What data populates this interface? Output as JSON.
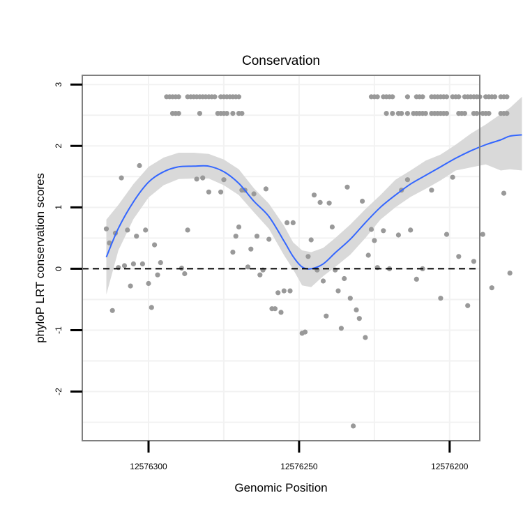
{
  "chart_data": {
    "type": "scatter",
    "title": "Conservation",
    "xlabel": "Genomic Position",
    "ylabel": "phyloP LRT conservation scores",
    "x_reversed": true,
    "xlim": [
      12576190,
      12576322
    ],
    "ylim": [
      -2.8,
      3.15
    ],
    "x_ticks": [
      {
        "value": 12576300,
        "label": "12576300"
      },
      {
        "value": 12576250,
        "label": "12576250"
      },
      {
        "value": 12576200,
        "label": "12576200"
      }
    ],
    "y_ticks": [
      {
        "value": 3,
        "label": "3"
      },
      {
        "value": 2,
        "label": "2"
      },
      {
        "value": 1,
        "label": "1"
      },
      {
        "value": 0,
        "label": "0"
      },
      {
        "value": -1,
        "label": "-1"
      },
      {
        "value": -2,
        "label": "-2"
      }
    ],
    "grid": true,
    "reference_line": {
      "y": 0,
      "style": "dashed",
      "color": "#000000"
    },
    "colors": {
      "points": "#999999",
      "smooth": "#3366FF",
      "ribbon": "#d9d9d9",
      "panel_border": "#7f7f7f",
      "grid": "#f2f2f2"
    },
    "series": [
      {
        "type": "scatter",
        "points": [
          [
            12576314,
            0.65
          ],
          [
            12576313,
            0.42
          ],
          [
            12576312,
            -0.68
          ],
          [
            12576311,
            0.58
          ],
          [
            12576310,
            0.02
          ],
          [
            12576309,
            1.48
          ],
          [
            12576308,
            0.05
          ],
          [
            12576307,
            0.63
          ],
          [
            12576306,
            -0.28
          ],
          [
            12576305,
            0.08
          ],
          [
            12576304,
            0.53
          ],
          [
            12576303,
            1.68
          ],
          [
            12576302,
            0.08
          ],
          [
            12576301,
            0.63
          ],
          [
            12576300,
            -0.24
          ],
          [
            12576299,
            -0.63
          ],
          [
            12576298,
            0.39
          ],
          [
            12576297,
            -0.1
          ],
          [
            12576296,
            0.1
          ],
          [
            12576289,
            0.01
          ],
          [
            12576288,
            -0.08
          ],
          [
            12576287,
            0.63
          ],
          [
            12576284,
            1.46
          ],
          [
            12576282,
            1.48
          ],
          [
            12576280,
            1.25
          ],
          [
            12576276,
            1.25
          ],
          [
            12576275,
            1.45
          ],
          [
            12576272,
            0.27
          ],
          [
            12576271,
            0.53
          ],
          [
            12576270,
            0.68
          ],
          [
            12576269,
            1.28
          ],
          [
            12576268,
            1.28
          ],
          [
            12576267,
            0.03
          ],
          [
            12576266,
            0.32
          ],
          [
            12576265,
            1.22
          ],
          [
            12576264,
            0.53
          ],
          [
            12576263,
            -0.1
          ],
          [
            12576262,
            -0.02
          ],
          [
            12576261,
            1.3
          ],
          [
            12576260,
            0.48
          ],
          [
            12576259,
            -0.65
          ],
          [
            12576258,
            -0.65
          ],
          [
            12576257,
            -0.39
          ],
          [
            12576256,
            -0.71
          ],
          [
            12576255,
            -0.36
          ],
          [
            12576254,
            0.75
          ],
          [
            12576253,
            -0.36
          ],
          [
            12576252,
            0.75
          ],
          [
            12576249,
            -1.05
          ],
          [
            12576248,
            -1.03
          ],
          [
            12576247,
            0.2
          ],
          [
            12576246,
            0.47
          ],
          [
            12576245,
            1.2
          ],
          [
            12576244,
            -0.02
          ],
          [
            12576243,
            1.08
          ],
          [
            12576242,
            -0.2
          ],
          [
            12576241,
            -0.77
          ],
          [
            12576240,
            1.07
          ],
          [
            12576239,
            0.68
          ],
          [
            12576238,
            -0.02
          ],
          [
            12576237,
            -0.36
          ],
          [
            12576236,
            -0.97
          ],
          [
            12576235,
            -0.16
          ],
          [
            12576234,
            1.33
          ],
          [
            12576233,
            -0.48
          ],
          [
            12576232,
            -2.56
          ],
          [
            12576231,
            -0.67
          ],
          [
            12576230,
            -0.81
          ],
          [
            12576229,
            1.1
          ],
          [
            12576228,
            -1.12
          ],
          [
            12576227,
            0.22
          ],
          [
            12576226,
            0.64
          ],
          [
            12576225,
            0.46
          ],
          [
            12576224,
            0.02
          ],
          [
            12576222,
            0.62
          ],
          [
            12576220,
            0.0
          ],
          [
            12576217,
            0.55
          ],
          [
            12576216,
            1.28
          ],
          [
            12576214,
            1.45
          ],
          [
            12576213,
            0.63
          ],
          [
            12576211,
            -0.17
          ],
          [
            12576209,
            0.0
          ],
          [
            12576206,
            1.28
          ],
          [
            12576203,
            -0.48
          ],
          [
            12576201,
            0.56
          ],
          [
            12576199,
            1.49
          ],
          [
            12576197,
            0.2
          ],
          [
            12576194,
            -0.6
          ],
          [
            12576192,
            0.12
          ],
          [
            12576189,
            0.56
          ],
          [
            12576186,
            -0.31
          ],
          [
            12576182,
            1.23
          ],
          [
            12576180,
            -0.07
          ],
          [
            12576294,
            2.8
          ],
          [
            12576293,
            2.8
          ],
          [
            12576292,
            2.8
          ],
          [
            12576291,
            2.8
          ],
          [
            12576290,
            2.8
          ],
          [
            12576287,
            2.8
          ],
          [
            12576286,
            2.8
          ],
          [
            12576285,
            2.8
          ],
          [
            12576284,
            2.8
          ],
          [
            12576283,
            2.8
          ],
          [
            12576282,
            2.8
          ],
          [
            12576281,
            2.8
          ],
          [
            12576280,
            2.8
          ],
          [
            12576279,
            2.8
          ],
          [
            12576278,
            2.8
          ],
          [
            12576276,
            2.8
          ],
          [
            12576275,
            2.8
          ],
          [
            12576274,
            2.8
          ],
          [
            12576273,
            2.8
          ],
          [
            12576272,
            2.8
          ],
          [
            12576271,
            2.8
          ],
          [
            12576270,
            2.8
          ],
          [
            12576292,
            2.53
          ],
          [
            12576291,
            2.53
          ],
          [
            12576290,
            2.53
          ],
          [
            12576283,
            2.53
          ],
          [
            12576277,
            2.53
          ],
          [
            12576276,
            2.53
          ],
          [
            12576275,
            2.53
          ],
          [
            12576274,
            2.53
          ],
          [
            12576272,
            2.53
          ],
          [
            12576270,
            2.53
          ],
          [
            12576269,
            2.53
          ],
          [
            12576226,
            2.8
          ],
          [
            12576225,
            2.8
          ],
          [
            12576224,
            2.8
          ],
          [
            12576222,
            2.8
          ],
          [
            12576221,
            2.8
          ],
          [
            12576220,
            2.8
          ],
          [
            12576219,
            2.8
          ],
          [
            12576214,
            2.8
          ],
          [
            12576211,
            2.8
          ],
          [
            12576210,
            2.8
          ],
          [
            12576209,
            2.8
          ],
          [
            12576206,
            2.8
          ],
          [
            12576205,
            2.8
          ],
          [
            12576204,
            2.8
          ],
          [
            12576203,
            2.8
          ],
          [
            12576202,
            2.8
          ],
          [
            12576201,
            2.8
          ],
          [
            12576199,
            2.8
          ],
          [
            12576198,
            2.8
          ],
          [
            12576197,
            2.8
          ],
          [
            12576195,
            2.8
          ],
          [
            12576194,
            2.8
          ],
          [
            12576193,
            2.8
          ],
          [
            12576192,
            2.8
          ],
          [
            12576191,
            2.8
          ],
          [
            12576190,
            2.8
          ],
          [
            12576188,
            2.8
          ],
          [
            12576187,
            2.8
          ],
          [
            12576186,
            2.8
          ],
          [
            12576185,
            2.8
          ],
          [
            12576183,
            2.8
          ],
          [
            12576182,
            2.8
          ],
          [
            12576181,
            2.8
          ],
          [
            12576221,
            2.53
          ],
          [
            12576219,
            2.53
          ],
          [
            12576217,
            2.53
          ],
          [
            12576216,
            2.53
          ],
          [
            12576214,
            2.53
          ],
          [
            12576212,
            2.53
          ],
          [
            12576211,
            2.53
          ],
          [
            12576210,
            2.53
          ],
          [
            12576209,
            2.53
          ],
          [
            12576208,
            2.53
          ],
          [
            12576206,
            2.53
          ],
          [
            12576205,
            2.53
          ],
          [
            12576204,
            2.53
          ],
          [
            12576203,
            2.53
          ],
          [
            12576202,
            2.53
          ],
          [
            12576201,
            2.53
          ],
          [
            12576197,
            2.53
          ],
          [
            12576196,
            2.53
          ],
          [
            12576195,
            2.53
          ],
          [
            12576192,
            2.53
          ],
          [
            12576191,
            2.53
          ],
          [
            12576189,
            2.53
          ],
          [
            12576188,
            2.53
          ],
          [
            12576187,
            2.53
          ],
          [
            12576183,
            2.53
          ],
          [
            12576182,
            2.53
          ],
          [
            12576181,
            2.53
          ]
        ]
      },
      {
        "type": "smooth",
        "points": [
          [
            12576314,
            0.19,
            -0.42,
            0.8
          ],
          [
            12576310,
            0.66,
            0.3,
            1.04
          ],
          [
            12576305,
            1.09,
            0.81,
            1.38
          ],
          [
            12576300,
            1.41,
            1.16,
            1.66
          ],
          [
            12576295,
            1.58,
            1.36,
            1.81
          ],
          [
            12576290,
            1.66,
            1.46,
            1.89
          ],
          [
            12576285,
            1.67,
            1.47,
            1.89
          ],
          [
            12576280,
            1.67,
            1.47,
            1.87
          ],
          [
            12576275,
            1.58,
            1.36,
            1.78
          ],
          [
            12576270,
            1.39,
            1.2,
            1.62
          ],
          [
            12576265,
            1.1,
            0.92,
            1.31
          ],
          [
            12576260,
            0.85,
            0.65,
            1.06
          ],
          [
            12576255,
            0.45,
            0.22,
            0.7
          ],
          [
            12576252,
            0.2,
            -0.01,
            0.43
          ],
          [
            12576249,
            0.03,
            -0.27,
            0.3
          ],
          [
            12576246,
            0.0,
            -0.3,
            0.27
          ],
          [
            12576242,
            0.08,
            -0.12,
            0.34
          ],
          [
            12576238,
            0.26,
            0.03,
            0.5
          ],
          [
            12576233,
            0.48,
            0.23,
            0.72
          ],
          [
            12576228,
            0.75,
            0.5,
            0.97
          ],
          [
            12576223,
            1.0,
            0.8,
            1.2
          ],
          [
            12576218,
            1.2,
            1.0,
            1.45
          ],
          [
            12576213,
            1.38,
            1.17,
            1.6
          ],
          [
            12576208,
            1.52,
            1.3,
            1.76
          ],
          [
            12576203,
            1.66,
            1.44,
            1.86
          ],
          [
            12576198,
            1.8,
            1.6,
            2.02
          ],
          [
            12576193,
            1.92,
            1.65,
            2.2
          ],
          [
            12576188,
            2.02,
            1.7,
            2.35
          ],
          [
            12576183,
            2.1,
            1.6,
            2.52
          ],
          [
            12576180,
            2.16,
            1.62,
            2.62
          ],
          [
            12576176,
            2.18,
            1.6,
            2.8
          ]
        ]
      }
    ]
  }
}
